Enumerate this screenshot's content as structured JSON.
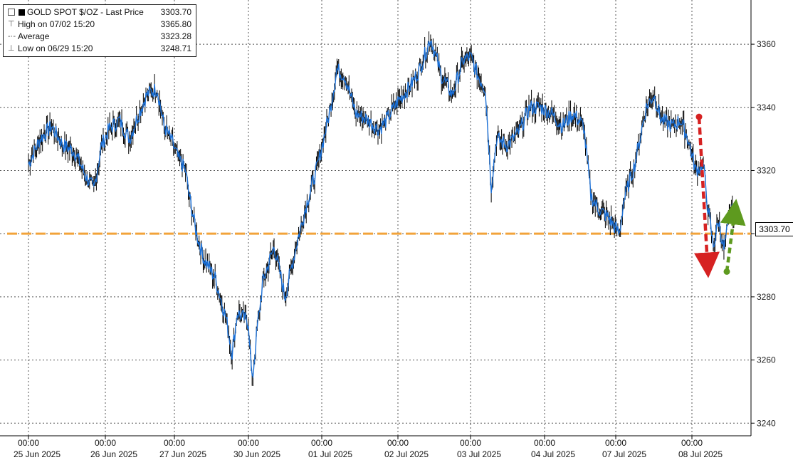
{
  "legend": {
    "title": "GOLD SPOT $/OZ - Last Price",
    "last_price": "3303.70",
    "high_label": "High on 07/02 15:20",
    "high_value": "3365.80",
    "avg_label": "Average",
    "avg_value": "3323.28",
    "low_label": "Low on 06/29 15:20",
    "low_value": "3248.71"
  },
  "last_badge": "3303.70",
  "colors": {
    "price_line": "#1a6fd6",
    "candle": "#000000",
    "support_line": "#f2a33a",
    "down_arrow": "#d62222",
    "up_arrow": "#5e9a1f",
    "grid": "#555555"
  },
  "chart_data": {
    "type": "line",
    "series": [
      {
        "name": "GOLD SPOT $/OZ",
        "points": [
          [
            0.0,
            3322
          ],
          [
            0.15,
            3330
          ],
          [
            0.3,
            3334
          ],
          [
            0.45,
            3328
          ],
          [
            0.6,
            3326
          ],
          [
            0.75,
            3318
          ],
          [
            0.85,
            3314
          ],
          [
            0.95,
            3328
          ],
          [
            1.05,
            3333
          ],
          [
            1.2,
            3336
          ],
          [
            1.35,
            3330
          ],
          [
            1.45,
            3336
          ],
          [
            1.6,
            3344
          ],
          [
            1.75,
            3346
          ],
          [
            1.85,
            3334
          ],
          [
            1.95,
            3330
          ],
          [
            2.05,
            3324
          ],
          [
            2.15,
            3320
          ],
          [
            2.2,
            3312
          ],
          [
            2.3,
            3300
          ],
          [
            2.4,
            3292
          ],
          [
            2.55,
            3286
          ],
          [
            2.7,
            3273
          ],
          [
            2.78,
            3262
          ],
          [
            2.85,
            3275
          ],
          [
            3.0,
            3272
          ],
          [
            3.05,
            3253
          ],
          [
            3.12,
            3270
          ],
          [
            3.2,
            3285
          ],
          [
            3.35,
            3296
          ],
          [
            3.5,
            3280
          ],
          [
            3.65,
            3296
          ],
          [
            3.8,
            3310
          ],
          [
            3.95,
            3322
          ],
          [
            4.1,
            3338
          ],
          [
            4.2,
            3352
          ],
          [
            4.3,
            3350
          ],
          [
            4.45,
            3338
          ],
          [
            4.6,
            3336
          ],
          [
            4.75,
            3333
          ],
          [
            4.85,
            3336
          ],
          [
            5.0,
            3342
          ],
          [
            5.15,
            3346
          ],
          [
            5.3,
            3352
          ],
          [
            5.45,
            3362
          ],
          [
            5.6,
            3350
          ],
          [
            5.75,
            3344
          ],
          [
            5.9,
            3355
          ],
          [
            6.0,
            3356
          ],
          [
            6.1,
            3350
          ],
          [
            6.2,
            3346
          ],
          [
            6.28,
            3315
          ],
          [
            6.35,
            3330
          ],
          [
            6.5,
            3328
          ],
          [
            6.65,
            3332
          ],
          [
            6.8,
            3340
          ],
          [
            6.95,
            3340
          ],
          [
            7.1,
            3338
          ],
          [
            7.25,
            3334
          ],
          [
            7.4,
            3338
          ],
          [
            7.55,
            3334
          ],
          [
            7.65,
            3312
          ],
          [
            7.75,
            3308
          ],
          [
            7.9,
            3305
          ],
          [
            8.05,
            3300
          ],
          [
            8.1,
            3310
          ],
          [
            8.25,
            3322
          ],
          [
            8.4,
            3340
          ],
          [
            8.5,
            3344
          ],
          [
            8.6,
            3336
          ],
          [
            8.75,
            3334
          ],
          [
            8.85,
            3336
          ],
          [
            8.95,
            3330
          ],
          [
            9.05,
            3320
          ],
          [
            9.15,
            3322
          ],
          [
            9.2,
            3310
          ],
          [
            9.28,
            3296
          ],
          [
            9.35,
            3304
          ],
          [
            9.42,
            3295
          ],
          [
            9.48,
            3303
          ],
          [
            9.52,
            3308
          ],
          [
            9.56,
            3303.7
          ]
        ]
      }
    ],
    "x_tick_times": [
      "00:00",
      "00:00",
      "00:00",
      "00:00",
      "00:00",
      "00:00",
      "00:00",
      "00:00",
      "00:00",
      "00:00"
    ],
    "x_tick_dates": [
      "25 Jun 2025",
      "26 Jun 2025",
      "27 Jun 2025",
      "30 Jun 2025",
      "01 Jul 2025",
      "02 Jul 2025",
      "03 Jul 2025",
      "04 Jul 2025",
      "07 Jul 2025",
      "08 Jul 2025"
    ],
    "y_ticks": [
      3240,
      3260,
      3280,
      3300,
      3320,
      3340,
      3360
    ],
    "ylim": [
      3236,
      3374
    ],
    "support_level": 3300,
    "grid": true,
    "legend_position": "top-left",
    "annotations": {
      "down_arrow": {
        "from": 3337,
        "to": 3290
      },
      "up_arrow": {
        "from": 3288,
        "to": 3307
      }
    }
  }
}
